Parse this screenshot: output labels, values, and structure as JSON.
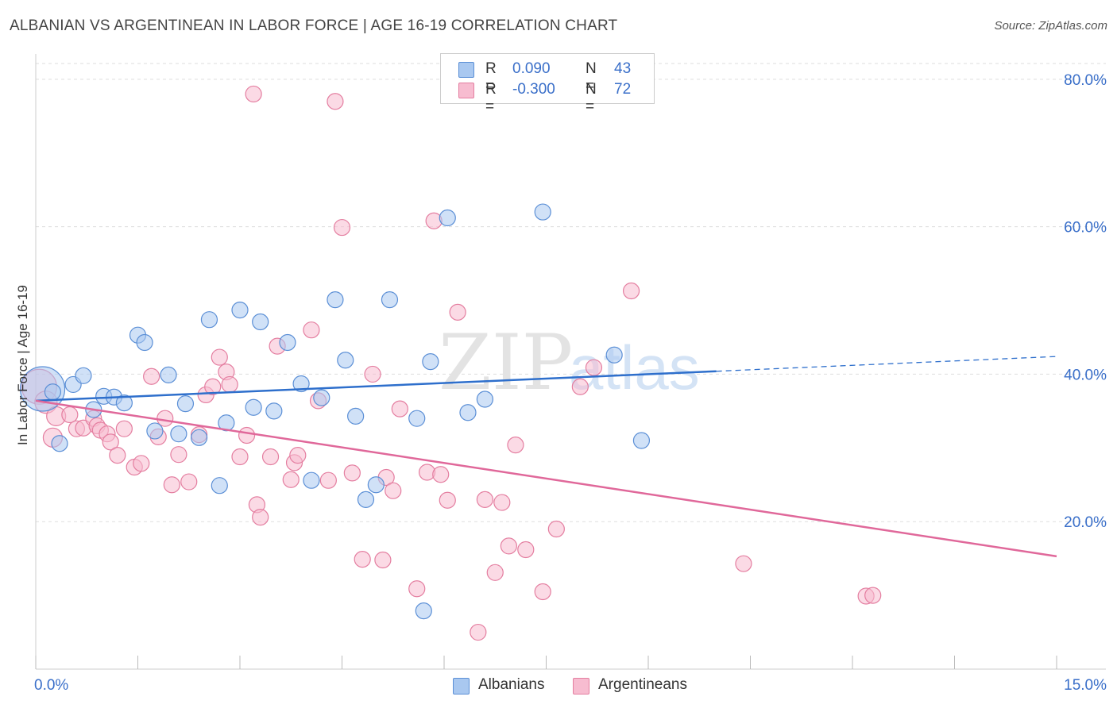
{
  "title": "ALBANIAN VS ARGENTINEAN IN LABOR FORCE | AGE 16-19 CORRELATION CHART",
  "source": "Source: ZipAtlas.com",
  "watermark": {
    "zip": "ZIP",
    "atlas": "atlas"
  },
  "legend": {
    "rows": [
      {
        "r_label": "R =",
        "r_value": "0.090",
        "n_label": "N =",
        "n_value": "43"
      },
      {
        "r_label": "R =",
        "r_value": "-0.300",
        "n_label": "N =",
        "n_value": "72"
      }
    ]
  },
  "bottom_legend": {
    "albanians": "Albanians",
    "argentineans": "Argentineans"
  },
  "colors": {
    "albanians_fill": "#a9c8f0",
    "albanians_stroke": "#5b8fd6",
    "albanians_line": "#2e6fcc",
    "argentineans_fill": "#f7bcd0",
    "argentineans_stroke": "#e47ea0",
    "argentineans_line": "#e0689a",
    "axis_label": "#3a6fc9",
    "grid": "#dddddd"
  },
  "chart_data": {
    "type": "scatter",
    "title": "ALBANIAN VS ARGENTINEAN IN LABOR FORCE | AGE 16-19 CORRELATION CHART",
    "xlabel": "",
    "ylabel": "In Labor Force | Age 16-19",
    "xlim": [
      0,
      15
    ],
    "ylim": [
      0,
      83
    ],
    "x_tick_labels": [
      "0.0%",
      "15.0%"
    ],
    "y_ticks": [
      20,
      40,
      60,
      80
    ],
    "y_tick_labels": [
      "20.0%",
      "40.0%",
      "60.0%",
      "80.0%"
    ],
    "grid": true,
    "legend_position": "top-center",
    "series": [
      {
        "name": "Albanians",
        "r": 0.09,
        "n": 43,
        "trend": {
          "x0": 0.0,
          "y0": 36.4,
          "x1": 10.0,
          "y1": 40.4,
          "dashed_to_x": 15.0,
          "dashed_to_y": 42.4
        },
        "points": [
          [
            0.1,
            38.0,
            28
          ],
          [
            0.25,
            37.6,
            10
          ],
          [
            0.35,
            30.6,
            10
          ],
          [
            0.55,
            38.6,
            10
          ],
          [
            0.7,
            39.8,
            10
          ],
          [
            0.85,
            35.2,
            10
          ],
          [
            1.0,
            37.0,
            10
          ],
          [
            1.15,
            36.9,
            10
          ],
          [
            1.3,
            36.1,
            10
          ],
          [
            1.5,
            45.3,
            10
          ],
          [
            1.6,
            44.3,
            10
          ],
          [
            1.75,
            32.3,
            10
          ],
          [
            1.95,
            39.9,
            10
          ],
          [
            2.1,
            31.9,
            10
          ],
          [
            2.2,
            36.0,
            10
          ],
          [
            2.4,
            31.4,
            10
          ],
          [
            2.55,
            47.4,
            10
          ],
          [
            2.7,
            24.9,
            10
          ],
          [
            2.8,
            33.4,
            10
          ],
          [
            3.0,
            48.7,
            10
          ],
          [
            3.2,
            35.5,
            10
          ],
          [
            3.3,
            47.1,
            10
          ],
          [
            3.5,
            35.0,
            10
          ],
          [
            3.7,
            44.3,
            10
          ],
          [
            3.9,
            38.7,
            10
          ],
          [
            4.05,
            25.6,
            10
          ],
          [
            4.2,
            36.8,
            10
          ],
          [
            4.4,
            50.1,
            10
          ],
          [
            4.55,
            41.9,
            10
          ],
          [
            4.7,
            34.3,
            10
          ],
          [
            4.85,
            23.0,
            10
          ],
          [
            5.0,
            25.0,
            10
          ],
          [
            5.2,
            50.1,
            10
          ],
          [
            5.6,
            34.0,
            10
          ],
          [
            5.7,
            7.9,
            10
          ],
          [
            5.8,
            41.7,
            10
          ],
          [
            6.05,
            61.2,
            10
          ],
          [
            6.35,
            34.8,
            10
          ],
          [
            6.6,
            36.6,
            10
          ],
          [
            7.45,
            62.0,
            10
          ],
          [
            8.5,
            42.6,
            10
          ],
          [
            8.9,
            31.0,
            10
          ]
        ]
      },
      {
        "name": "Argentineans",
        "r": -0.3,
        "n": 72,
        "trend": {
          "x0": 0.0,
          "y0": 36.4,
          "x1": 15.0,
          "y1": 15.3
        },
        "points": [
          [
            0.05,
            38.3,
            22
          ],
          [
            0.15,
            36.2,
            14
          ],
          [
            0.25,
            31.4,
            12
          ],
          [
            0.3,
            34.3,
            12
          ],
          [
            0.5,
            34.5,
            10
          ],
          [
            0.6,
            32.6,
            10
          ],
          [
            0.7,
            32.7,
            10
          ],
          [
            0.85,
            34.0,
            10
          ],
          [
            0.9,
            33.0,
            10
          ],
          [
            0.95,
            32.4,
            10
          ],
          [
            1.05,
            31.9,
            10
          ],
          [
            1.1,
            30.8,
            10
          ],
          [
            1.2,
            29.0,
            10
          ],
          [
            1.3,
            32.6,
            10
          ],
          [
            1.45,
            27.4,
            10
          ],
          [
            1.55,
            27.9,
            10
          ],
          [
            1.7,
            39.7,
            10
          ],
          [
            1.8,
            31.5,
            10
          ],
          [
            1.9,
            34.0,
            10
          ],
          [
            2.0,
            25.0,
            10
          ],
          [
            2.1,
            29.1,
            10
          ],
          [
            2.25,
            25.4,
            10
          ],
          [
            2.4,
            31.8,
            10
          ],
          [
            2.5,
            37.2,
            10
          ],
          [
            2.6,
            38.3,
            10
          ],
          [
            2.7,
            42.3,
            10
          ],
          [
            2.8,
            40.3,
            10
          ],
          [
            2.85,
            38.6,
            10
          ],
          [
            3.0,
            28.8,
            10
          ],
          [
            3.1,
            31.7,
            10
          ],
          [
            3.25,
            22.3,
            10
          ],
          [
            3.3,
            20.6,
            10
          ],
          [
            3.45,
            28.8,
            10
          ],
          [
            3.55,
            43.8,
            10
          ],
          [
            3.75,
            25.7,
            10
          ],
          [
            3.8,
            28.0,
            10
          ],
          [
            3.85,
            29.0,
            10
          ],
          [
            4.05,
            46.0,
            10
          ],
          [
            4.15,
            36.4,
            10
          ],
          [
            4.3,
            25.6,
            10
          ],
          [
            4.4,
            77.0,
            10
          ],
          [
            4.5,
            59.9,
            10
          ],
          [
            4.65,
            26.6,
            10
          ],
          [
            4.8,
            14.9,
            10
          ],
          [
            4.95,
            40.0,
            10
          ],
          [
            5.1,
            14.8,
            10
          ],
          [
            5.15,
            26.0,
            10
          ],
          [
            5.25,
            24.2,
            10
          ],
          [
            5.35,
            35.3,
            10
          ],
          [
            5.6,
            10.9,
            10
          ],
          [
            5.75,
            26.7,
            10
          ],
          [
            5.85,
            60.8,
            10
          ],
          [
            5.95,
            26.4,
            10
          ],
          [
            6.05,
            22.9,
            10
          ],
          [
            6.2,
            48.4,
            10
          ],
          [
            6.5,
            5.0,
            10
          ],
          [
            6.6,
            23.0,
            10
          ],
          [
            6.75,
            13.1,
            10
          ],
          [
            6.85,
            22.6,
            10
          ],
          [
            6.95,
            16.7,
            10
          ],
          [
            7.05,
            30.4,
            10
          ],
          [
            7.2,
            16.2,
            10
          ],
          [
            7.45,
            10.5,
            10
          ],
          [
            7.65,
            19.0,
            10
          ],
          [
            8.0,
            38.3,
            10
          ],
          [
            8.2,
            40.9,
            10
          ],
          [
            8.75,
            51.3,
            10
          ],
          [
            10.4,
            14.3,
            10
          ],
          [
            12.2,
            9.9,
            10
          ],
          [
            12.3,
            10.0,
            10
          ],
          [
            3.2,
            78.0,
            10
          ]
        ]
      }
    ]
  }
}
